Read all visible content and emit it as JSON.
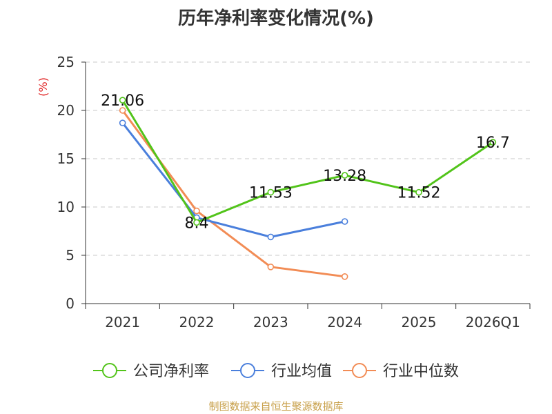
{
  "chart_data": {
    "type": "line",
    "title": "历年净利率变化情况(%)",
    "ylabel": "(%)",
    "categories": [
      "2021",
      "2022",
      "2023",
      "2024",
      "2025",
      "2026Q1"
    ],
    "ylim": [
      0,
      25
    ],
    "yticks": [
      0,
      5,
      10,
      15,
      20,
      25
    ],
    "grid": true,
    "legend_position": "bottom",
    "series": [
      {
        "name": "公司净利率",
        "color": "#52c41a",
        "values": [
          21.06,
          8.4,
          11.53,
          13.28,
          11.52,
          16.7
        ],
        "labels": [
          "21.06",
          "8.4",
          "11.53",
          "13.28",
          "11.52",
          "16.7"
        ]
      },
      {
        "name": "行业均值",
        "color": "#4a7fdc",
        "values": [
          18.7,
          8.9,
          6.9,
          8.5,
          null,
          null
        ]
      },
      {
        "name": "行业中位数",
        "color": "#f28c55",
        "values": [
          20.0,
          9.6,
          3.8,
          2.8,
          null,
          null
        ]
      }
    ]
  },
  "source": "制图数据来自恒生聚源数据库"
}
